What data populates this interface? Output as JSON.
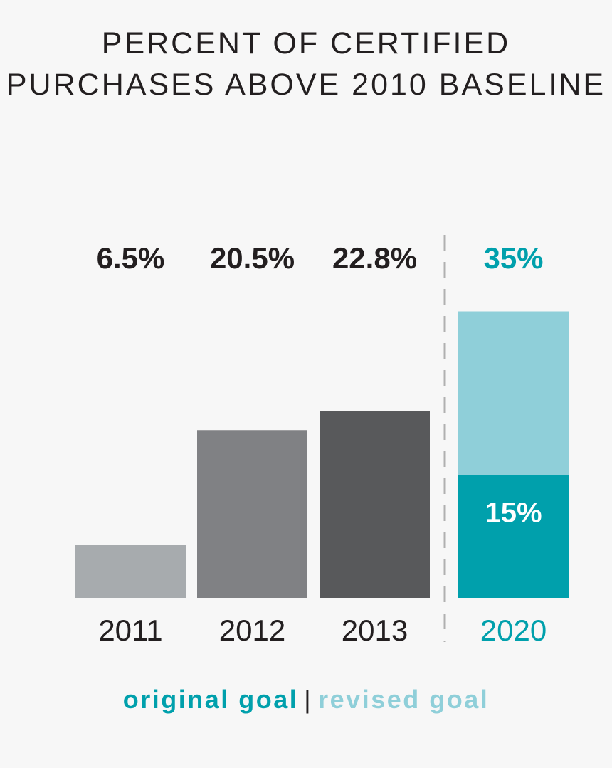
{
  "chart_data": {
    "type": "bar",
    "title_lines": [
      "PERCENT OF CERTIFIED",
      "PURCHASES ABOVE 2010 BASELINE"
    ],
    "categories": [
      "2011",
      "2012",
      "2013",
      "2020"
    ],
    "values": [
      6.5,
      20.5,
      22.8,
      35
    ],
    "value_labels": [
      "6.5%",
      "20.5%",
      "22.8%",
      "35%"
    ],
    "goal_split": {
      "category": "2020",
      "original_goal": 15,
      "original_goal_label": "15%",
      "revised_goal": 35
    },
    "ylim": [
      0,
      37
    ],
    "grid": false,
    "divider": "dashed line between 2013 and 2020",
    "legend": {
      "placement": "bottom",
      "entries": [
        "original goal",
        "revised goal"
      ],
      "separator": "|"
    },
    "colors": {
      "bar_2011": "#a7abae",
      "bar_2012": "#808184",
      "bar_2013": "#58595b",
      "original_goal": "#00a0ac",
      "revised_goal": "#8fcfd9",
      "text_dark": "#231f20",
      "divider": "#b0b0b0"
    }
  }
}
